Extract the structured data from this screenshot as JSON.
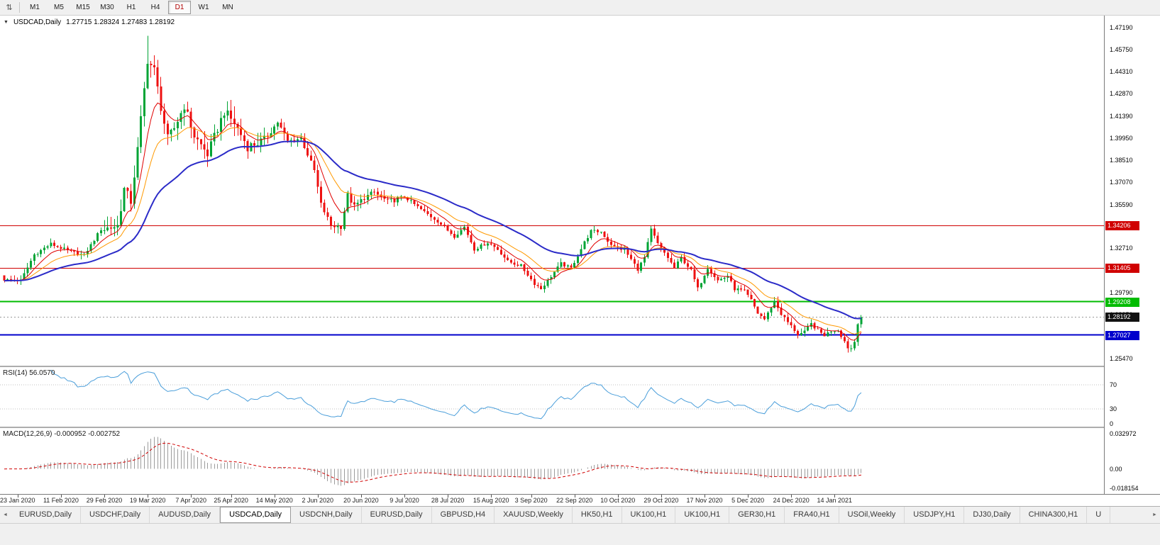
{
  "window": {
    "title": "USDCAD Daily chart"
  },
  "icons": {
    "price_scale_glyph": "⇅",
    "title_marker_glyph": "▼",
    "tab_scroll_left_glyph": "◄",
    "tab_scroll_right_glyph": "►"
  },
  "toolbar": {
    "timeframes": [
      {
        "label": "M1",
        "active": false
      },
      {
        "label": "M5",
        "active": false
      },
      {
        "label": "M15",
        "active": false
      },
      {
        "label": "M30",
        "active": false
      },
      {
        "label": "H1",
        "active": false
      },
      {
        "label": "H4",
        "active": false
      },
      {
        "label": "D1",
        "active": true
      },
      {
        "label": "W1",
        "active": false
      },
      {
        "label": "MN",
        "active": false
      }
    ]
  },
  "chart": {
    "title_symbol": "USDCAD,Daily",
    "title_ohlc": "1.27715 1.28324 1.27483 1.28192"
  },
  "tabbar": {
    "tabs": [
      {
        "label": "EURUSD,Daily",
        "active": false
      },
      {
        "label": "USDCHF,Daily",
        "active": false
      },
      {
        "label": "AUDUSD,Daily",
        "active": false
      },
      {
        "label": "USDCAD,Daily",
        "active": true
      },
      {
        "label": "USDCNH,Daily",
        "active": false
      },
      {
        "label": "EURUSD,Daily",
        "active": false
      },
      {
        "label": "GBPUSD,H4",
        "active": false
      },
      {
        "label": "XAUUSD,Weekly",
        "active": false
      },
      {
        "label": "HK50,H1",
        "active": false
      },
      {
        "label": "UK100,H1",
        "active": false
      },
      {
        "label": "UK100,H1",
        "active": false
      },
      {
        "label": "GER30,H1",
        "active": false
      },
      {
        "label": "FRA40,H1",
        "active": false
      },
      {
        "label": "USOil,Weekly",
        "active": false
      },
      {
        "label": "USDJPY,H1",
        "active": false
      },
      {
        "label": "DJ30,Daily",
        "active": false
      },
      {
        "label": "CHINA300,H1",
        "active": false
      },
      {
        "label": "U",
        "active": false,
        "truncated": true
      }
    ]
  },
  "chart_data": {
    "type": "candlestick",
    "symbol": "USDCAD",
    "period": "Daily",
    "candle_count": 258,
    "last_candle": {
      "open": 1.27715,
      "high": 1.28324,
      "low": 1.27483,
      "close": 1.28192
    },
    "price_scale": {
      "top": 1.48,
      "bottom": 1.25
    },
    "price_ticks": [
      "1.47190",
      "1.45750",
      "1.44310",
      "1.42870",
      "1.41390",
      "1.39950",
      "1.38510",
      "1.37070",
      "1.35590",
      "1.34150",
      "1.32710",
      "1.31270",
      "1.29790",
      "1.28350",
      "1.26910",
      "1.25470"
    ],
    "horizontal_lines": [
      {
        "price": 1.34206,
        "label": "1.34206",
        "color": "#D00000",
        "width": 1
      },
      {
        "price": 1.31405,
        "label": "1.31405",
        "color": "#D00000",
        "width": 1
      },
      {
        "price": 1.29208,
        "label": "1.29208",
        "color": "#00BB00",
        "width": 2
      },
      {
        "price": 1.27027,
        "label": "1.27027",
        "color": "#0000CC",
        "width": 2
      }
    ],
    "current_price": {
      "price": 1.28192,
      "label": "1.28192",
      "color": "#111111"
    },
    "candle_colors": {
      "up": "#00A435",
      "down": "#EE1111"
    },
    "moving_averages": [
      {
        "period": 8,
        "color": "#E00000",
        "width": 1
      },
      {
        "period": 17,
        "color": "#FF9900",
        "width": 1
      },
      {
        "period": 40,
        "color": "#2B2BC8",
        "width": 2
      }
    ],
    "close_anchors": [
      [
        0,
        1.3065
      ],
      [
        5,
        1.306
      ],
      [
        9,
        1.323
      ],
      [
        14,
        1.33
      ],
      [
        19,
        1.3255
      ],
      [
        24,
        1.3225
      ],
      [
        29,
        1.3395
      ],
      [
        34,
        1.342
      ],
      [
        36,
        1.366
      ],
      [
        38,
        1.358
      ],
      [
        40,
        1.392
      ],
      [
        43,
        1.451
      ],
      [
        45,
        1.444
      ],
      [
        47,
        1.42
      ],
      [
        49,
        1.399
      ],
      [
        51,
        1.406
      ],
      [
        54,
        1.421
      ],
      [
        57,
        1.401
      ],
      [
        61,
        1.389
      ],
      [
        66,
        1.417
      ],
      [
        69,
        1.4095
      ],
      [
        73,
        1.394
      ],
      [
        78,
        1.398
      ],
      [
        82,
        1.41
      ],
      [
        85,
        1.3975
      ],
      [
        89,
        1.3995
      ],
      [
        93,
        1.378
      ],
      [
        95,
        1.356
      ],
      [
        98,
        1.342
      ],
      [
        101,
        1.3415
      ],
      [
        103,
        1.362
      ],
      [
        105,
        1.3545
      ],
      [
        108,
        1.3605
      ],
      [
        111,
        1.364
      ],
      [
        115,
        1.3576
      ],
      [
        120,
        1.361
      ],
      [
        126,
        1.351
      ],
      [
        130,
        1.345
      ],
      [
        135,
        1.335
      ],
      [
        138,
        1.3412
      ],
      [
        141,
        1.3265
      ],
      [
        145,
        1.331
      ],
      [
        148,
        1.3265
      ],
      [
        151,
        1.3185
      ],
      [
        155,
        1.3155
      ],
      [
        159,
        1.304
      ],
      [
        161,
        1.3005
      ],
      [
        163,
        1.306
      ],
      [
        167,
        1.317
      ],
      [
        170,
        1.314
      ],
      [
        174,
        1.331
      ],
      [
        176,
        1.3385
      ],
      [
        179,
        1.338
      ],
      [
        181,
        1.332
      ],
      [
        183,
        1.328
      ],
      [
        186,
        1.326
      ],
      [
        190,
        1.3135
      ],
      [
        192,
        1.321
      ],
      [
        194,
        1.3395
      ],
      [
        196,
        1.33
      ],
      [
        199,
        1.321
      ],
      [
        201,
        1.314
      ],
      [
        203,
        1.321
      ],
      [
        206,
        1.3125
      ],
      [
        208,
        1.3005
      ],
      [
        211,
        1.3145
      ],
      [
        214,
        1.306
      ],
      [
        217,
        1.309
      ],
      [
        219,
        1.3005
      ],
      [
        222,
        1.299
      ],
      [
        224,
        1.293
      ],
      [
        226,
        1.2845
      ],
      [
        228,
        1.2805
      ],
      [
        231,
        1.2925
      ],
      [
        233,
        1.284
      ],
      [
        236,
        1.276
      ],
      [
        238,
        1.2705
      ],
      [
        240,
        1.272
      ],
      [
        242,
        1.2775
      ],
      [
        244,
        1.273
      ],
      [
        246,
        1.27
      ],
      [
        248,
        1.273
      ],
      [
        250,
        1.2735
      ],
      [
        252,
        1.266
      ],
      [
        253,
        1.262
      ],
      [
        254,
        1.2615
      ],
      [
        255,
        1.2655
      ],
      [
        256,
        1.27715
      ],
      [
        257,
        1.28192
      ]
    ],
    "extremes": {
      "peak_high": 1.4668,
      "late_low": 1.2588
    },
    "wick_marks": [
      {
        "idx": 177,
        "high": 1.342
      },
      {
        "idx": 194,
        "high": 1.3418
      },
      {
        "idx": 231,
        "high": 1.2925
      }
    ],
    "volatility_zones": [
      {
        "from": 30,
        "to": 78,
        "amp": 0.0062,
        "wick": 0.0085
      },
      {
        "from": 79,
        "to": 118,
        "amp": 0.0034,
        "wick": 0.0046
      }
    ],
    "base_volatility": {
      "amp": 0.0021,
      "wick": 0.003
    },
    "date_labels": [
      {
        "idx": 4,
        "text": "23 Jan 2020"
      },
      {
        "idx": 17,
        "text": "11 Feb 2020"
      },
      {
        "idx": 30,
        "text": "29 Feb 2020"
      },
      {
        "idx": 43,
        "text": "19 Mar 2020"
      },
      {
        "idx": 56,
        "text": "7 Apr 2020"
      },
      {
        "idx": 68,
        "text": "25 Apr 2020"
      },
      {
        "idx": 81,
        "text": "14 May 2020"
      },
      {
        "idx": 94,
        "text": "2 Jun 2020"
      },
      {
        "idx": 107,
        "text": "20 Jun 2020"
      },
      {
        "idx": 120,
        "text": "9 Jul 2020"
      },
      {
        "idx": 133,
        "text": "28 Jul 2020"
      },
      {
        "idx": 146,
        "text": "15 Aug 2020"
      },
      {
        "idx": 158,
        "text": "3 Sep 2020"
      },
      {
        "idx": 171,
        "text": "22 Sep 2020"
      },
      {
        "idx": 184,
        "text": "10 Oct 2020"
      },
      {
        "idx": 197,
        "text": "29 Oct 2020"
      },
      {
        "idx": 210,
        "text": "17 Nov 2020"
      },
      {
        "idx": 223,
        "text": "5 Dec 2020"
      },
      {
        "idx": 236,
        "text": "24 Dec 2020"
      },
      {
        "idx": 249,
        "text": "14 Jan 2021"
      }
    ],
    "rsi": {
      "display": "RSI(14) 56.0570",
      "period": 14,
      "value": 56.057,
      "levels": [
        70,
        30
      ],
      "axis_labels": [
        "70",
        "30",
        "0"
      ],
      "color": "#4A9EDA",
      "level_color": "#C0C0C0"
    },
    "macd": {
      "display": "MACD(12,26,9) -0.000952 -0.002752",
      "fast": 12,
      "slow": 26,
      "signal_period": 9,
      "value": -0.000952,
      "signal_value": -0.002752,
      "axis_labels": [
        "0.032972",
        "0.00",
        "-0.018154"
      ],
      "axis_max": 0.032972,
      "axis_min": -0.018154,
      "hist_color": "#9C9C9C",
      "signal_color": "#D00000"
    }
  }
}
